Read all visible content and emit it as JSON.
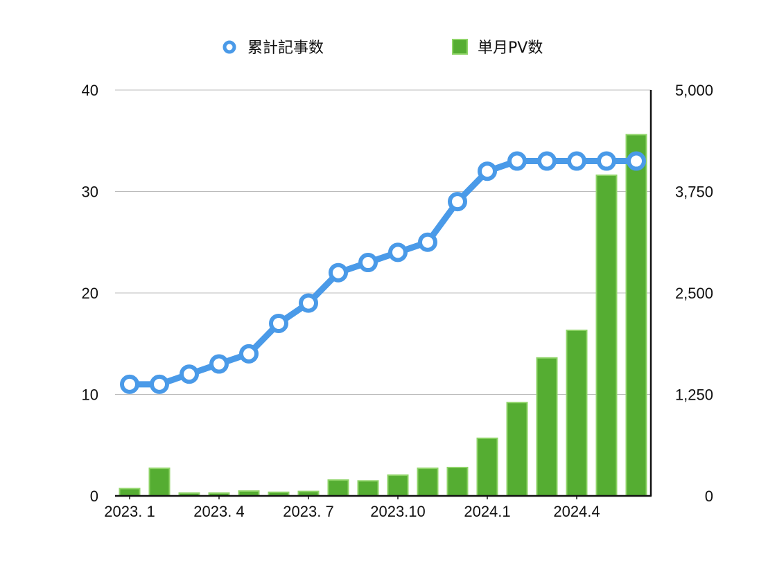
{
  "chart_data": {
    "type": "bar",
    "categories": [
      "2023.1",
      "2023.2",
      "2023.3",
      "2023.4",
      "2023.5",
      "2023.6",
      "2023.7",
      "2023.8",
      "2023.9",
      "2023.10",
      "2023.11",
      "2023.12",
      "2024.1",
      "2024.2",
      "2024.3",
      "2024.4",
      "2024.5",
      "2024.6"
    ],
    "x_tick_labels": [
      {
        "index": 0,
        "label": "2023. 1"
      },
      {
        "index": 3,
        "label": "2023. 4"
      },
      {
        "index": 6,
        "label": "2023. 7"
      },
      {
        "index": 9,
        "label": "2023.10"
      },
      {
        "index": 12,
        "label": "2024.1"
      },
      {
        "index": 15,
        "label": "2024.4"
      }
    ],
    "series": [
      {
        "name": "累計記事数",
        "type": "line",
        "axis": "left",
        "color": "#4a9ae8",
        "values": [
          11,
          11,
          12,
          13,
          14,
          17,
          19,
          22,
          23,
          24,
          25,
          29,
          32,
          33,
          33,
          33,
          33,
          33
        ]
      },
      {
        "name": "単月PV数",
        "type": "bar",
        "axis": "right",
        "color": "#55ad32",
        "edge_color": "#8fd468",
        "values": [
          90,
          340,
          35,
          35,
          60,
          45,
          55,
          195,
          185,
          255,
          340,
          350,
          710,
          1150,
          1700,
          2040,
          3950,
          4450
        ]
      }
    ],
    "y_left": {
      "min": 0,
      "max": 40,
      "ticks": [
        0,
        10,
        20,
        30,
        40
      ],
      "tick_labels": [
        "0",
        "10",
        "20",
        "30",
        "40"
      ]
    },
    "y_right": {
      "min": 0,
      "max": 5000,
      "ticks": [
        0,
        1250,
        2500,
        3750,
        5000
      ],
      "tick_labels": [
        "0",
        "1,250",
        "2,500",
        "3,750",
        "5,000"
      ]
    },
    "grid": true,
    "legend_position": "top-center",
    "gridline_color": "#bbbbbb",
    "axis_color": "#111111"
  }
}
